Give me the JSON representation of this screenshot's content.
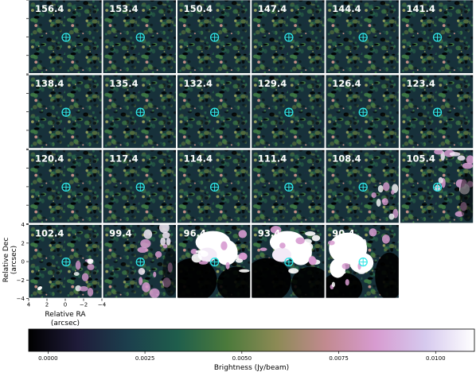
{
  "chart_data": {
    "type": "heatmap",
    "title": "",
    "grid": {
      "rows": 4,
      "cols": 6
    },
    "panels": [
      {
        "label": "156.4",
        "emission": "none"
      },
      {
        "label": "153.4",
        "emission": "none"
      },
      {
        "label": "150.4",
        "emission": "none"
      },
      {
        "label": "147.4",
        "emission": "none"
      },
      {
        "label": "144.4",
        "emission": "none"
      },
      {
        "label": "141.4",
        "emission": "none"
      },
      {
        "label": "138.4",
        "emission": "none"
      },
      {
        "label": "135.4",
        "emission": "none"
      },
      {
        "label": "132.4",
        "emission": "none"
      },
      {
        "label": "129.4",
        "emission": "none"
      },
      {
        "label": "126.4",
        "emission": "none"
      },
      {
        "label": "123.4",
        "emission": "none"
      },
      {
        "label": "120.4",
        "emission": "none"
      },
      {
        "label": "117.4",
        "emission": "none"
      },
      {
        "label": "114.4",
        "emission": "none"
      },
      {
        "label": "111.4",
        "emission": "none"
      },
      {
        "label": "108.4",
        "emission": "faint"
      },
      {
        "label": "105.4",
        "emission": "moderate"
      },
      {
        "label": "102.4",
        "emission": "faint"
      },
      {
        "label": "99.4",
        "emission": "moderate"
      },
      {
        "label": "96.4",
        "emission": "strong"
      },
      {
        "label": "93.4",
        "emission": "strong"
      },
      {
        "label": "90.4",
        "emission": "very-strong"
      }
    ],
    "xaxis": {
      "label": "Relative RA\n(arcsec)",
      "range": [
        4,
        -4
      ],
      "ticks": [
        4,
        2,
        0,
        -2,
        -4
      ],
      "tick_labels": [
        "4",
        "2",
        "0",
        "−2",
        "−4"
      ]
    },
    "yaxis": {
      "label": "Relative Dec\n(arcsec)",
      "range": [
        -4,
        4
      ],
      "ticks": [
        4,
        2,
        0,
        -2,
        -4
      ],
      "tick_labels": [
        "4",
        "2",
        "0",
        "−2",
        "−4"
      ]
    },
    "colorbar": {
      "label": "Brightness (Jy/beam)",
      "range": [
        -0.0005,
        0.011
      ],
      "ticks": [
        0.0,
        0.0025,
        0.005,
        0.0075,
        0.01
      ],
      "tick_labels": [
        "0.0000",
        "0.0025",
        "0.0050",
        "0.0075",
        "0.0100"
      ]
    },
    "colors": {
      "cmap": [
        "#000000",
        "#1f1c3a",
        "#1c3f4d",
        "#1f5e4c",
        "#4b7a3b",
        "#8c8a55",
        "#c28a90",
        "#d79bd0",
        "#d6c9ee",
        "#ffffff"
      ],
      "marker": "#2fe6e6"
    }
  }
}
